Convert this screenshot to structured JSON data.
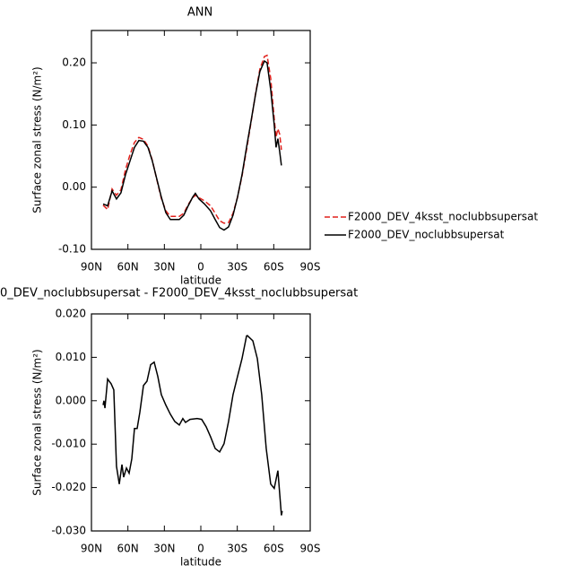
{
  "chart_data": [
    {
      "type": "line",
      "title": "ANN",
      "xlabel": "latitude",
      "ylabel": "Surface zonal stress (N/m²)",
      "x": [
        80.4,
        76.7,
        73,
        69.4,
        65.7,
        62,
        58.3,
        54.6,
        51,
        47.2,
        43.5,
        39.9,
        36.2,
        32.5,
        28.8,
        25.1,
        17.7,
        14,
        10.4,
        6.7,
        4.5,
        1.5,
        -3,
        -8,
        -11.8,
        -15.5,
        -19.1,
        -22.8,
        -26.5,
        -30.2,
        -33.9,
        -37.6,
        -41.3,
        -45,
        -48.6,
        -52.3,
        -54.5,
        -57.5,
        -60.4,
        -61.9,
        -63.4,
        -64.9,
        -66.3
      ],
      "series": [
        {
          "name": "F2000_DEV_4ksst_noclubbsupersat",
          "color": "#e0201b",
          "linestyle": "dashed",
          "values": [
            -0.029,
            -0.036,
            -0.003,
            -0.013,
            -0.004,
            0.028,
            0.052,
            0.072,
            0.08,
            0.077,
            0.066,
            0.043,
            0.012,
            -0.018,
            -0.038,
            -0.047,
            -0.047,
            -0.042,
            -0.028,
            -0.017,
            -0.013,
            -0.017,
            -0.022,
            -0.03,
            -0.042,
            -0.054,
            -0.058,
            -0.057,
            -0.042,
            -0.016,
            0.018,
            0.06,
            0.104,
            0.15,
            0.19,
            0.21,
            0.212,
            0.175,
            0.11,
            0.08,
            0.094,
            0.085,
            0.06
          ]
        },
        {
          "name": "F2000_DEV_noclubbsupersat",
          "color": "#000000",
          "linestyle": "solid",
          "values": [
            -0.027,
            -0.03,
            -0.006,
            -0.019,
            -0.009,
            0.02,
            0.042,
            0.064,
            0.075,
            0.074,
            0.064,
            0.042,
            0.013,
            -0.016,
            -0.041,
            -0.052,
            -0.052,
            -0.045,
            -0.03,
            -0.016,
            -0.01,
            -0.019,
            -0.027,
            -0.038,
            -0.052,
            -0.065,
            -0.069,
            -0.064,
            -0.045,
            -0.016,
            0.02,
            0.064,
            0.106,
            0.149,
            0.186,
            0.203,
            0.2,
            0.157,
            0.1,
            0.064,
            0.078,
            0.057,
            0.035
          ]
        }
      ],
      "xlim": [
        90,
        -90
      ],
      "xticks": [
        {
          "value": 90,
          "label": "90N"
        },
        {
          "value": 60,
          "label": "60N"
        },
        {
          "value": 30,
          "label": "30N"
        },
        0,
        {
          "value": -30,
          "label": "30S"
        },
        {
          "value": -60,
          "label": "60S"
        },
        {
          "value": -90,
          "label": "90S"
        }
      ],
      "ylim": [
        -0.1,
        0.252
      ],
      "yticks": [
        {
          "value": -0.1,
          "label": "-0.10"
        },
        {
          "value": 0,
          "label": "0.00"
        },
        {
          "value": 0.1,
          "label": "0.10"
        },
        {
          "value": 0.2,
          "label": "0.20"
        }
      ],
      "legend": "right"
    },
    {
      "type": "line",
      "title": "0_DEV_noclubbsupersat - F2000_DEV_4ksst_noclubbsupersat",
      "xlabel": "latitude",
      "ylabel": "Surface zonal stress (N/m²)",
      "x": [
        80.4,
        79.7,
        78.9,
        76.7,
        73.8,
        71.6,
        69.4,
        67.1,
        64.9,
        63.5,
        61.2,
        59,
        56.8,
        54.6,
        52.4,
        50.2,
        47.2,
        44.3,
        41.3,
        38.4,
        35.4,
        32.5,
        28.8,
        25.1,
        21.4,
        17.7,
        14.8,
        12.6,
        8.9,
        3,
        -0.7,
        -4.4,
        -8,
        -11.8,
        -15.5,
        -19.1,
        -22.8,
        -26.5,
        -30.2,
        -33.9,
        -37.6,
        -38.3,
        -42.8,
        -46.5,
        -50.1,
        -53.8,
        -57.5,
        -60.4,
        -63.4,
        -66.3,
        -67
      ],
      "values": [
        -0.001,
        0,
        -0.0017,
        0.005,
        0.0039,
        0.0025,
        -0.0151,
        -0.0192,
        -0.0147,
        -0.0176,
        -0.0155,
        -0.0167,
        -0.0134,
        -0.0064,
        -0.0064,
        -0.0027,
        0.0035,
        0.0045,
        0.0083,
        0.0089,
        0.0056,
        0.0014,
        -0.001,
        -0.0031,
        -0.0048,
        -0.0056,
        -0.0041,
        -0.005,
        -0.0043,
        -0.0041,
        -0.0043,
        -0.006,
        -0.0083,
        -0.011,
        -0.0118,
        -0.0099,
        -0.0048,
        0.0014,
        0.0056,
        0.0097,
        0.0149,
        0.015,
        0.0138,
        0.0097,
        0.0014,
        -0.011,
        -0.0192,
        -0.0202,
        -0.0161,
        -0.0264,
        -0.0254
      ],
      "color": "#000000",
      "xlim": [
        90,
        -90
      ],
      "xticks": [
        {
          "value": 90,
          "label": "90N"
        },
        {
          "value": 60,
          "label": "60N"
        },
        {
          "value": 30,
          "label": "30N"
        },
        0,
        {
          "value": -30,
          "label": "30S"
        },
        {
          "value": -60,
          "label": "60S"
        },
        {
          "value": -90,
          "label": "90S"
        }
      ],
      "ylim": [
        -0.03,
        0.02
      ],
      "yticks": [
        {
          "value": -0.03,
          "label": "-0.030"
        },
        {
          "value": -0.02,
          "label": "-0.020"
        },
        {
          "value": -0.01,
          "label": "-0.010"
        },
        {
          "value": 0,
          "label": "0.000"
        },
        {
          "value": 0.01,
          "label": "0.010"
        },
        {
          "value": 0.02,
          "label": "0.020"
        }
      ]
    }
  ]
}
